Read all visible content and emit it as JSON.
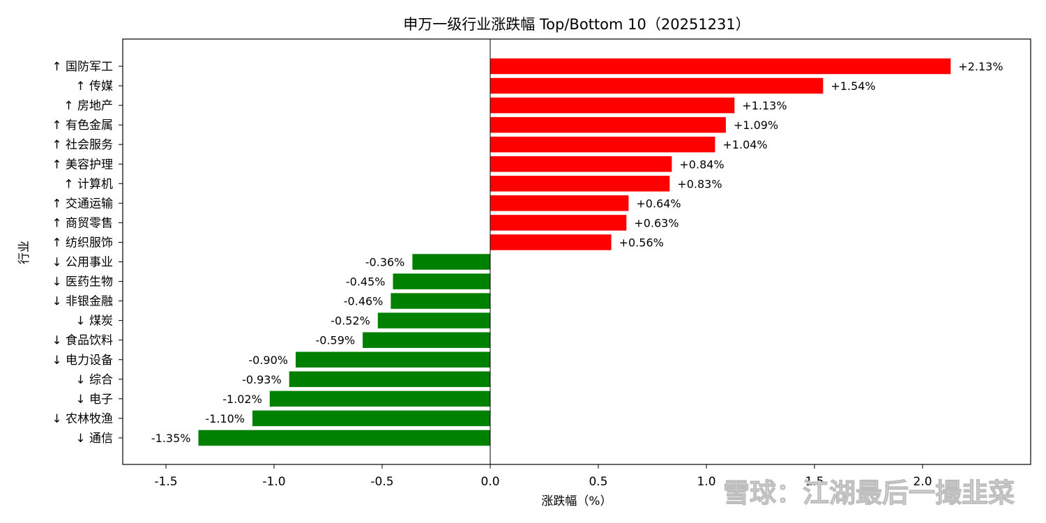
{
  "chart_data": {
    "type": "bar",
    "orientation": "horizontal",
    "title": "申万一级行业涨跌幅 Top/Bottom 10（20251231）",
    "xlabel": "涨跌幅（%）",
    "ylabel": "行业",
    "xlim": [
      -1.7,
      2.5
    ],
    "xticks": [
      -1.5,
      -1.0,
      -0.5,
      0.0,
      0.5,
      1.0,
      1.5,
      2.0
    ],
    "xtick_labels": [
      "-1.5",
      "-1.0",
      "-0.5",
      "0.0",
      "0.5",
      "1.0",
      "1.5",
      "2.0"
    ],
    "grid": false,
    "categories": [
      "↑ 国防军工",
      "↑ 传媒",
      "↑ 房地产",
      "↑ 有色金属",
      "↑ 社会服务",
      "↑ 美容护理",
      "↑ 计算机",
      "↑ 交通运输",
      "↑ 商贸零售",
      "↑ 纺织服饰",
      "↓ 公用事业",
      "↓ 医药生物",
      "↓ 非银金融",
      "↓ 煤炭",
      "↓ 食品饮料",
      "↓ 电力设备",
      "↓ 综合",
      "↓ 电子",
      "↓ 农林牧渔",
      "↓ 通信"
    ],
    "values": [
      2.13,
      1.54,
      1.13,
      1.09,
      1.04,
      0.84,
      0.83,
      0.64,
      0.63,
      0.56,
      -0.36,
      -0.45,
      -0.46,
      -0.52,
      -0.59,
      -0.9,
      -0.93,
      -1.02,
      -1.1,
      -1.35
    ],
    "value_labels": [
      "+2.13%",
      "+1.54%",
      "+1.13%",
      "+1.09%",
      "+1.04%",
      "+0.84%",
      "+0.83%",
      "+0.64%",
      "+0.63%",
      "+0.56%",
      "-0.36%",
      "-0.45%",
      "-0.46%",
      "-0.52%",
      "-0.59%",
      "-0.90%",
      "-0.93%",
      "-1.02%",
      "-1.10%",
      "-1.35%"
    ],
    "colors": {
      "positive": "#ff0000",
      "negative": "#008000"
    }
  },
  "watermark": "雪球：江湖最后一撮韭菜"
}
